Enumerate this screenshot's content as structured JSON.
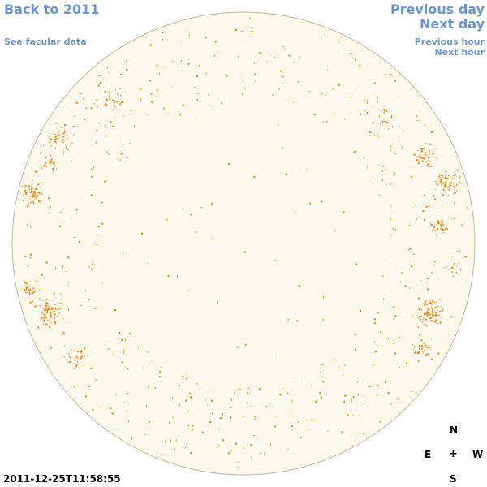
{
  "nav": {
    "back_label": "Back to 2011",
    "facular_label": "See facular data",
    "prev_day_label": "Previous day",
    "next_day_label": "Next day",
    "prev_hour_label": "Previous hour",
    "next_hour_label": "Next hour"
  },
  "compass": {
    "north": "N",
    "east": "E",
    "center": "+",
    "west": "W",
    "south": "S"
  },
  "timestamp": "2011-12-25T11:58:55",
  "colors": {
    "link": "#6b96d6",
    "disk_fill": "#fdf8ec",
    "disk_outline": "#c8b89a",
    "facula": "#e8870c"
  }
}
